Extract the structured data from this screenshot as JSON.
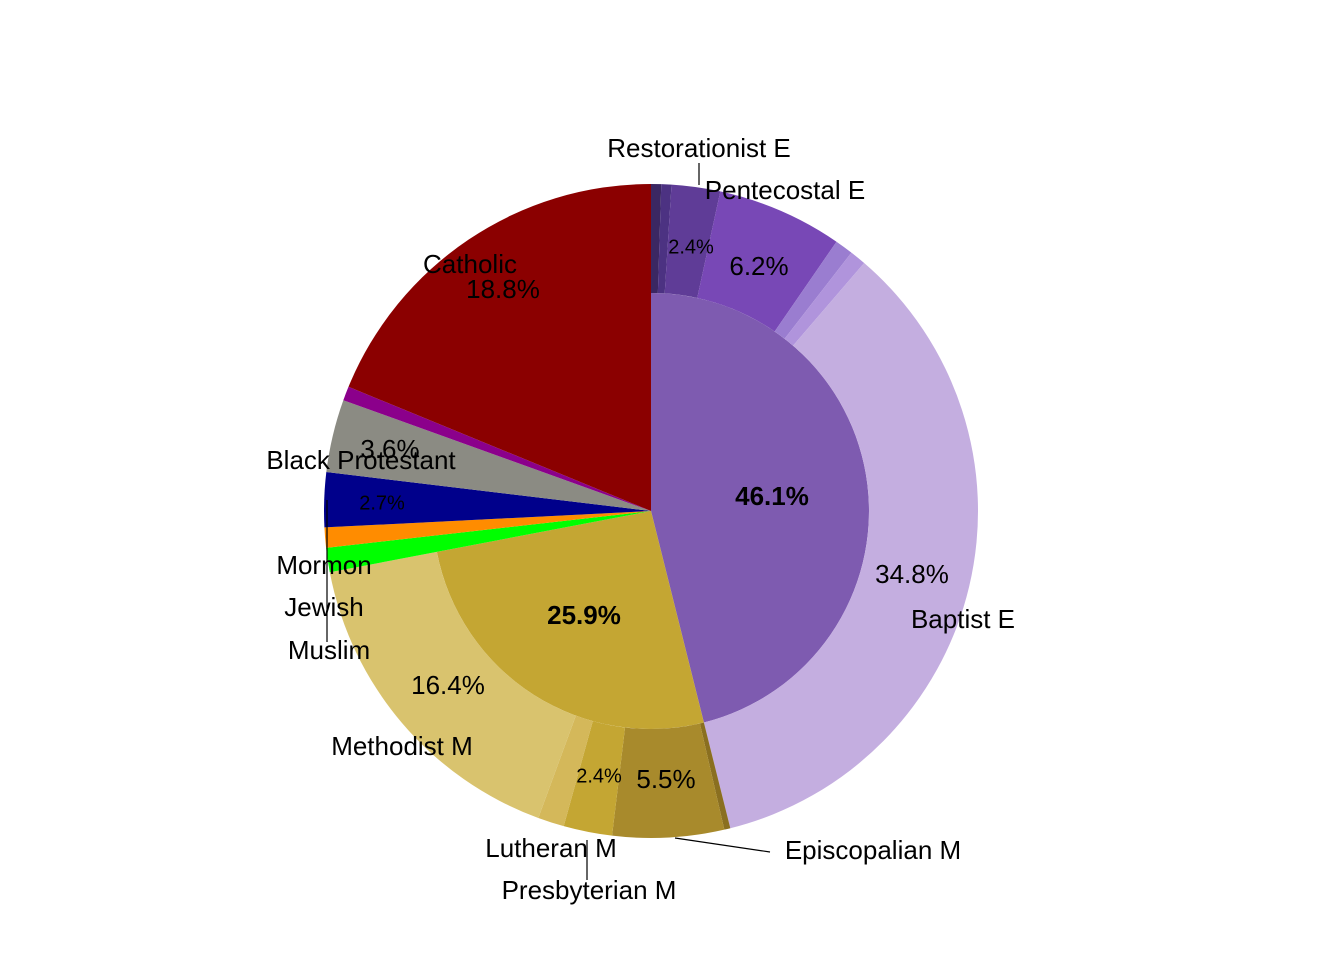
{
  "chart_data": {
    "type": "sunburst",
    "slices": [
      {
        "name": null,
        "value": 46.1,
        "value_label": "46.1%",
        "color": "#7e5bb0",
        "children": [
          {
            "name": "Restorationist E",
            "value": 0.5,
            "value_label": null,
            "color": "#3b2762"
          },
          {
            "name": null,
            "value": 0.5,
            "value_label": null,
            "color": "#4c3282"
          },
          {
            "name": "Pentecostal E",
            "value": 2.4,
            "value_label": "2.4%",
            "color": "#5f3c97"
          },
          {
            "name": null,
            "value": 6.2,
            "value_label": "6.2%",
            "color": "#7848b6"
          },
          {
            "name": null,
            "value": 0.9,
            "value_label": null,
            "color": "#9a7dd0"
          },
          {
            "name": null,
            "value": 0.8,
            "value_label": null,
            "color": "#b094dc"
          },
          {
            "name": "Baptist E",
            "value": 34.8,
            "value_label": "34.8%",
            "color": "#c4aee0"
          }
        ]
      },
      {
        "name": null,
        "value": 25.9,
        "value_label": "25.9%",
        "color": "#c4a633",
        "children": [
          {
            "name": null,
            "value": 0.3,
            "value_label": null,
            "color": "#8a6f20"
          },
          {
            "name": "Episcopalian M",
            "value": 5.5,
            "value_label": "5.5%",
            "color": "#a88a2c"
          },
          {
            "name": "Presbyterian M",
            "value": 2.4,
            "value_label": "2.4%",
            "color": "#c4a633"
          },
          {
            "name": "Lutheran M",
            "value": 1.3,
            "value_label": null,
            "color": "#d4b85a"
          },
          {
            "name": "Methodist M",
            "value": 16.4,
            "value_label": "16.4%",
            "color": "#d9c36e"
          }
        ]
      },
      {
        "name": "Muslim",
        "value": 1.2,
        "value_label": null,
        "color": "#00ff00"
      },
      {
        "name": "Jewish",
        "value": 1.0,
        "value_label": null,
        "color": "#ff8c00"
      },
      {
        "name": "Mormon",
        "value": 2.7,
        "value_label": "2.7%",
        "color": "#00008b"
      },
      {
        "name": "Black Protestant",
        "value": 3.6,
        "value_label": "3.6%",
        "color": "#8b8b83"
      },
      {
        "name": null,
        "value": 0.7,
        "value_label": null,
        "color": "#8b008b"
      },
      {
        "name": "Catholic",
        "value": 18.8,
        "value_label": "18.8%",
        "color": "#8b0000"
      }
    ]
  }
}
